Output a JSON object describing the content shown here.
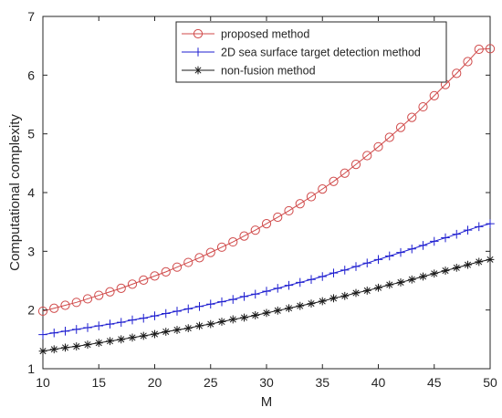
{
  "chart_data": {
    "type": "line",
    "title": "",
    "xlabel": "M",
    "ylabel": "Computational complexity",
    "xlim": [
      10,
      50
    ],
    "ylim": [
      1,
      7
    ],
    "xticks": [
      10,
      15,
      20,
      25,
      30,
      35,
      40,
      45,
      50
    ],
    "yticks": [
      1,
      2,
      3,
      4,
      5,
      6,
      7
    ],
    "grid": false,
    "box": true,
    "legend_position": "top-right",
    "x": [
      10,
      11,
      12,
      13,
      14,
      15,
      16,
      17,
      18,
      19,
      20,
      21,
      22,
      23,
      24,
      25,
      26,
      27,
      28,
      29,
      30,
      31,
      32,
      33,
      34,
      35,
      36,
      37,
      38,
      39,
      40,
      41,
      42,
      43,
      44,
      45,
      46,
      47,
      48,
      49,
      50
    ],
    "series": [
      {
        "name": "proposed method",
        "color": "#d04a4a",
        "marker": "circle",
        "values": [
          1.98,
          2.03,
          2.08,
          2.13,
          2.19,
          2.25,
          2.31,
          2.37,
          2.44,
          2.51,
          2.58,
          2.65,
          2.73,
          2.81,
          2.89,
          2.98,
          3.07,
          3.16,
          3.26,
          3.36,
          3.47,
          3.58,
          3.69,
          3.81,
          3.93,
          4.06,
          4.19,
          4.33,
          4.48,
          4.63,
          4.78,
          4.94,
          5.11,
          5.28,
          5.46,
          5.65,
          5.84,
          6.03,
          6.23,
          6.44,
          6.45
        ]
      },
      {
        "name": "2D sea surface target detection method",
        "color": "#1f1fd0",
        "marker": "plus",
        "values": [
          1.58,
          1.61,
          1.64,
          1.67,
          1.7,
          1.73,
          1.76,
          1.79,
          1.83,
          1.86,
          1.9,
          1.94,
          1.98,
          2.02,
          2.06,
          2.1,
          2.14,
          2.18,
          2.23,
          2.27,
          2.32,
          2.37,
          2.42,
          2.47,
          2.52,
          2.57,
          2.63,
          2.68,
          2.74,
          2.8,
          2.86,
          2.92,
          2.98,
          3.04,
          3.1,
          3.17,
          3.23,
          3.29,
          3.36,
          3.42,
          3.47
        ]
      },
      {
        "name": "non-fusion method",
        "color": "#1a1a1a",
        "marker": "asterisk",
        "values": [
          1.3,
          1.33,
          1.36,
          1.38,
          1.41,
          1.44,
          1.47,
          1.5,
          1.53,
          1.56,
          1.59,
          1.63,
          1.66,
          1.69,
          1.73,
          1.76,
          1.8,
          1.84,
          1.87,
          1.91,
          1.95,
          1.99,
          2.03,
          2.07,
          2.11,
          2.15,
          2.2,
          2.24,
          2.29,
          2.33,
          2.38,
          2.43,
          2.47,
          2.52,
          2.57,
          2.62,
          2.67,
          2.72,
          2.77,
          2.82,
          2.86
        ]
      }
    ]
  }
}
